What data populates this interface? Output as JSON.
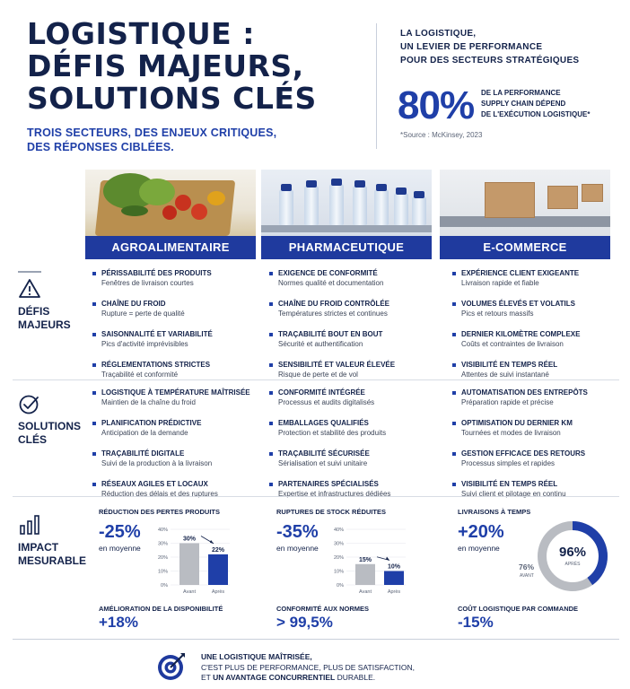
{
  "header": {
    "title_lines": [
      "LOGISTIQUE :",
      "DÉFIS MAJEURS,",
      "SOLUTIONS CLÉS"
    ],
    "subtitle_lines": [
      "TROIS SECTEURS, DES ENJEUX CRITIQUES,",
      "DES RÉPONSES CIBLÉES."
    ],
    "side_heading_lines": [
      "LA LOGISTIQUE,",
      "UN LEVIER DE PERFORMANCE",
      "POUR DES SECTEURS STRATÉGIQUES"
    ],
    "stat_value": "80%",
    "stat_text_lines": [
      "DE LA PERFORMANCE",
      "SUPPLY CHAIN DÉPEND",
      "DE L'EXÉCUTION LOGISTIQUE*"
    ],
    "source": "*Source : McKinsey, 2023"
  },
  "sectors": [
    "AGROALIMENTAIRE",
    "PHARMACEUTIQUE",
    "E-COMMERCE"
  ],
  "rows": {
    "defis_label_lines": [
      "DÉFIS",
      "MAJEURS"
    ],
    "solutions_label_lines": [
      "SOLUTIONS",
      "CLÉS"
    ],
    "impact_label_lines": [
      "IMPACT",
      "MESURABLE"
    ]
  },
  "defis": [
    [
      {
        "t": "PÉRISSABILITÉ DES PRODUITS",
        "d": "Fenêtres de livraison courtes"
      },
      {
        "t": "CHAÎNE DU FROID",
        "d": "Rupture = perte de qualité"
      },
      {
        "t": "SAISONNALITÉ ET VARIABILITÉ",
        "d": "Pics d'activité imprévisibles"
      },
      {
        "t": "RÉGLEMENTATIONS STRICTES",
        "d": "Traçabilité et conformité"
      }
    ],
    [
      {
        "t": "EXIGENCE DE CONFORMITÉ",
        "d": "Normes qualité et documentation"
      },
      {
        "t": "CHAÎNE DU FROID CONTRÔLÉE",
        "d": "Températures strictes et continues"
      },
      {
        "t": "TRAÇABILITÉ BOUT EN BOUT",
        "d": "Sécurité et authentification"
      },
      {
        "t": "SENSIBILITÉ ET VALEUR ÉLEVÉE",
        "d": "Risque de perte et de vol"
      }
    ],
    [
      {
        "t": "EXPÉRIENCE CLIENT EXIGEANTE",
        "d": "Livraison rapide et fiable"
      },
      {
        "t": "VOLUMES ÉLEVÉS ET VOLATILS",
        "d": "Pics et retours massifs"
      },
      {
        "t": "DERNIER KILOMÈTRE COMPLEXE",
        "d": "Coûts et contraintes de livraison"
      },
      {
        "t": "VISIBILITÉ EN TEMPS RÉEL",
        "d": "Attentes de suivi instantané"
      }
    ]
  ],
  "solutions": [
    [
      {
        "t": "LOGISTIQUE À TEMPÉRATURE MAÎTRISÉE",
        "d": "Maintien de la chaîne du froid"
      },
      {
        "t": "PLANIFICATION PRÉDICTIVE",
        "d": "Anticipation de la demande"
      },
      {
        "t": "TRAÇABILITÉ DIGITALE",
        "d": "Suivi de la production à la livraison"
      },
      {
        "t": "RÉSEAUX AGILES ET LOCAUX",
        "d": "Réduction des délais et des ruptures"
      }
    ],
    [
      {
        "t": "CONFORMITÉ INTÉGRÉE",
        "d": "Processus et audits digitalisés"
      },
      {
        "t": "EMBALLAGES QUALIFIÉS",
        "d": "Protection et stabilité des produits"
      },
      {
        "t": "TRAÇABILITÉ SÉCURISÉE",
        "d": "Sérialisation et suivi unitaire"
      },
      {
        "t": "PARTENAIRES SPÉCIALISÉS",
        "d": "Expertise et infrastructures dédiées"
      }
    ],
    [
      {
        "t": "AUTOMATISATION DES ENTREPÔTS",
        "d": "Préparation rapide et précise"
      },
      {
        "t": "OPTIMISATION DU DERNIER KM",
        "d": "Tournées et modes de livraison"
      },
      {
        "t": "GESTION EFFICACE DES RETOURS",
        "d": "Processus simples et rapides"
      },
      {
        "t": "VISIBILITÉ EN TEMPS RÉEL",
        "d": "Suivi client et pilotage en continu"
      }
    ]
  ],
  "impact": {
    "agro": {
      "title": "RÉDUCTION DES PERTES PRODUITS",
      "value": "-25%",
      "sub": "en moyenne",
      "chart": {
        "avant": 30,
        "apres": 22,
        "avant_label": "30%",
        "apres_label": "22%",
        "ticks": [
          "40%",
          "30%",
          "20%",
          "10%",
          "0%"
        ],
        "x_labels": [
          "Avant",
          "Après"
        ],
        "max": 40
      },
      "bottom_title": "AMÉLIORATION DE LA DISPONIBILITÉ",
      "bottom_value": "+18%"
    },
    "pharma": {
      "title": "RUPTURES DE STOCK RÉDUITES",
      "value": "-35%",
      "sub": "en moyenne",
      "chart": {
        "avant": 15,
        "apres": 10,
        "avant_label": "15%",
        "apres_label": "10%",
        "ticks": [
          "40%",
          "30%",
          "20%",
          "10%",
          "0%"
        ],
        "x_labels": [
          "Avant",
          "Après"
        ],
        "max": 40
      },
      "bottom_title": "CONFORMITÉ AUX NORMES",
      "bottom_value": "> 99,5%"
    },
    "ecom": {
      "title": "LIVRAISONS À TEMPS",
      "value": "+20%",
      "sub": "en moyenne",
      "donut": {
        "apres_pct": 96,
        "apres_label": "96%",
        "apres_txt": "APRÈS",
        "avant_label": "76%",
        "avant_txt": "AVANT"
      },
      "bottom_title": "COÛT LOGISTIQUE PAR COMMANDE",
      "bottom_value": "-15%"
    }
  },
  "footer": {
    "line1": "UNE LOGISTIQUE MAÎTRISÉE,",
    "line2": "C'EST PLUS DE PERFORMANCE, PLUS DE SATISFACTION,",
    "line3_a": "ET ",
    "line3_b": "UN AVANTAGE CONCURRENTIEL",
    "line3_c": " DURABLE."
  },
  "colors": {
    "navy": "#13224a",
    "accent": "#1f3fa8",
    "bar_gray": "#b9bcc2"
  }
}
